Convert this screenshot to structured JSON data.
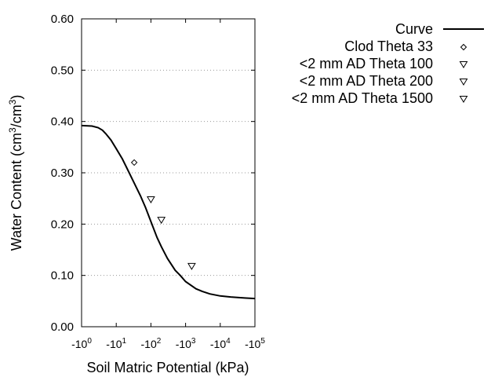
{
  "chart_data": {
    "type": "scatter",
    "title": "",
    "xlabel": "Soil Matric Potential (kPa)",
    "ylabel": {
      "prefix": "Water Content (cm",
      "exp1": "3",
      "mid": "/cm",
      "exp2": "3",
      "suffix": ")"
    },
    "x_scale": "log (magnitude of negative potential)",
    "xlim": [
      1,
      100000
    ],
    "ylim": [
      0.0,
      0.6
    ],
    "grid": "horizontal dotted",
    "legend_position": "right, outside plot",
    "x_ticks": [
      {
        "value": 1,
        "base": "-10",
        "exp": "0"
      },
      {
        "value": 10,
        "base": "-10",
        "exp": "1"
      },
      {
        "value": 100,
        "base": "-10",
        "exp": "2"
      },
      {
        "value": 1000,
        "base": "-10",
        "exp": "3"
      },
      {
        "value": 10000,
        "base": "-10",
        "exp": "4"
      },
      {
        "value": 100000,
        "base": "-10",
        "exp": "5"
      }
    ],
    "y_ticks": [
      {
        "value": 0.0,
        "label": "0.00"
      },
      {
        "value": 0.1,
        "label": "0.10"
      },
      {
        "value": 0.2,
        "label": "0.20"
      },
      {
        "value": 0.3,
        "label": "0.30"
      },
      {
        "value": 0.4,
        "label": "0.40"
      },
      {
        "value": 0.5,
        "label": "0.50"
      },
      {
        "value": 0.6,
        "label": "0.60"
      }
    ],
    "series": [
      {
        "name": "Curve",
        "kind": "line",
        "color": "#000000",
        "points": [
          [
            1,
            0.392
          ],
          [
            2,
            0.391
          ],
          [
            3,
            0.388
          ],
          [
            4,
            0.383
          ],
          [
            5,
            0.376
          ],
          [
            7,
            0.364
          ],
          [
            10,
            0.347
          ],
          [
            15,
            0.327
          ],
          [
            20,
            0.31
          ],
          [
            33,
            0.28
          ],
          [
            50,
            0.255
          ],
          [
            70,
            0.232
          ],
          [
            100,
            0.205
          ],
          [
            150,
            0.174
          ],
          [
            200,
            0.156
          ],
          [
            300,
            0.133
          ],
          [
            500,
            0.11
          ],
          [
            700,
            0.1
          ],
          [
            1000,
            0.088
          ],
          [
            2000,
            0.074
          ],
          [
            3000,
            0.069
          ],
          [
            5000,
            0.064
          ],
          [
            10000,
            0.06
          ],
          [
            20000,
            0.058
          ],
          [
            50000,
            0.056
          ],
          [
            100000,
            0.055
          ]
        ]
      },
      {
        "name": "Clod Theta 33",
        "kind": "points",
        "marker": "diamond",
        "points": [
          [
            33,
            0.32
          ]
        ]
      },
      {
        "name": "<2 mm AD Theta 100",
        "kind": "points",
        "marker": "triangle-down",
        "points": [
          [
            100,
            0.248
          ]
        ]
      },
      {
        "name": "<2 mm AD Theta 200",
        "kind": "points",
        "marker": "triangle-down",
        "points": [
          [
            200,
            0.208
          ]
        ]
      },
      {
        "name": "<2 mm AD Theta 1500",
        "kind": "points",
        "marker": "triangle-down",
        "points": [
          [
            1500,
            0.118
          ]
        ]
      }
    ]
  }
}
